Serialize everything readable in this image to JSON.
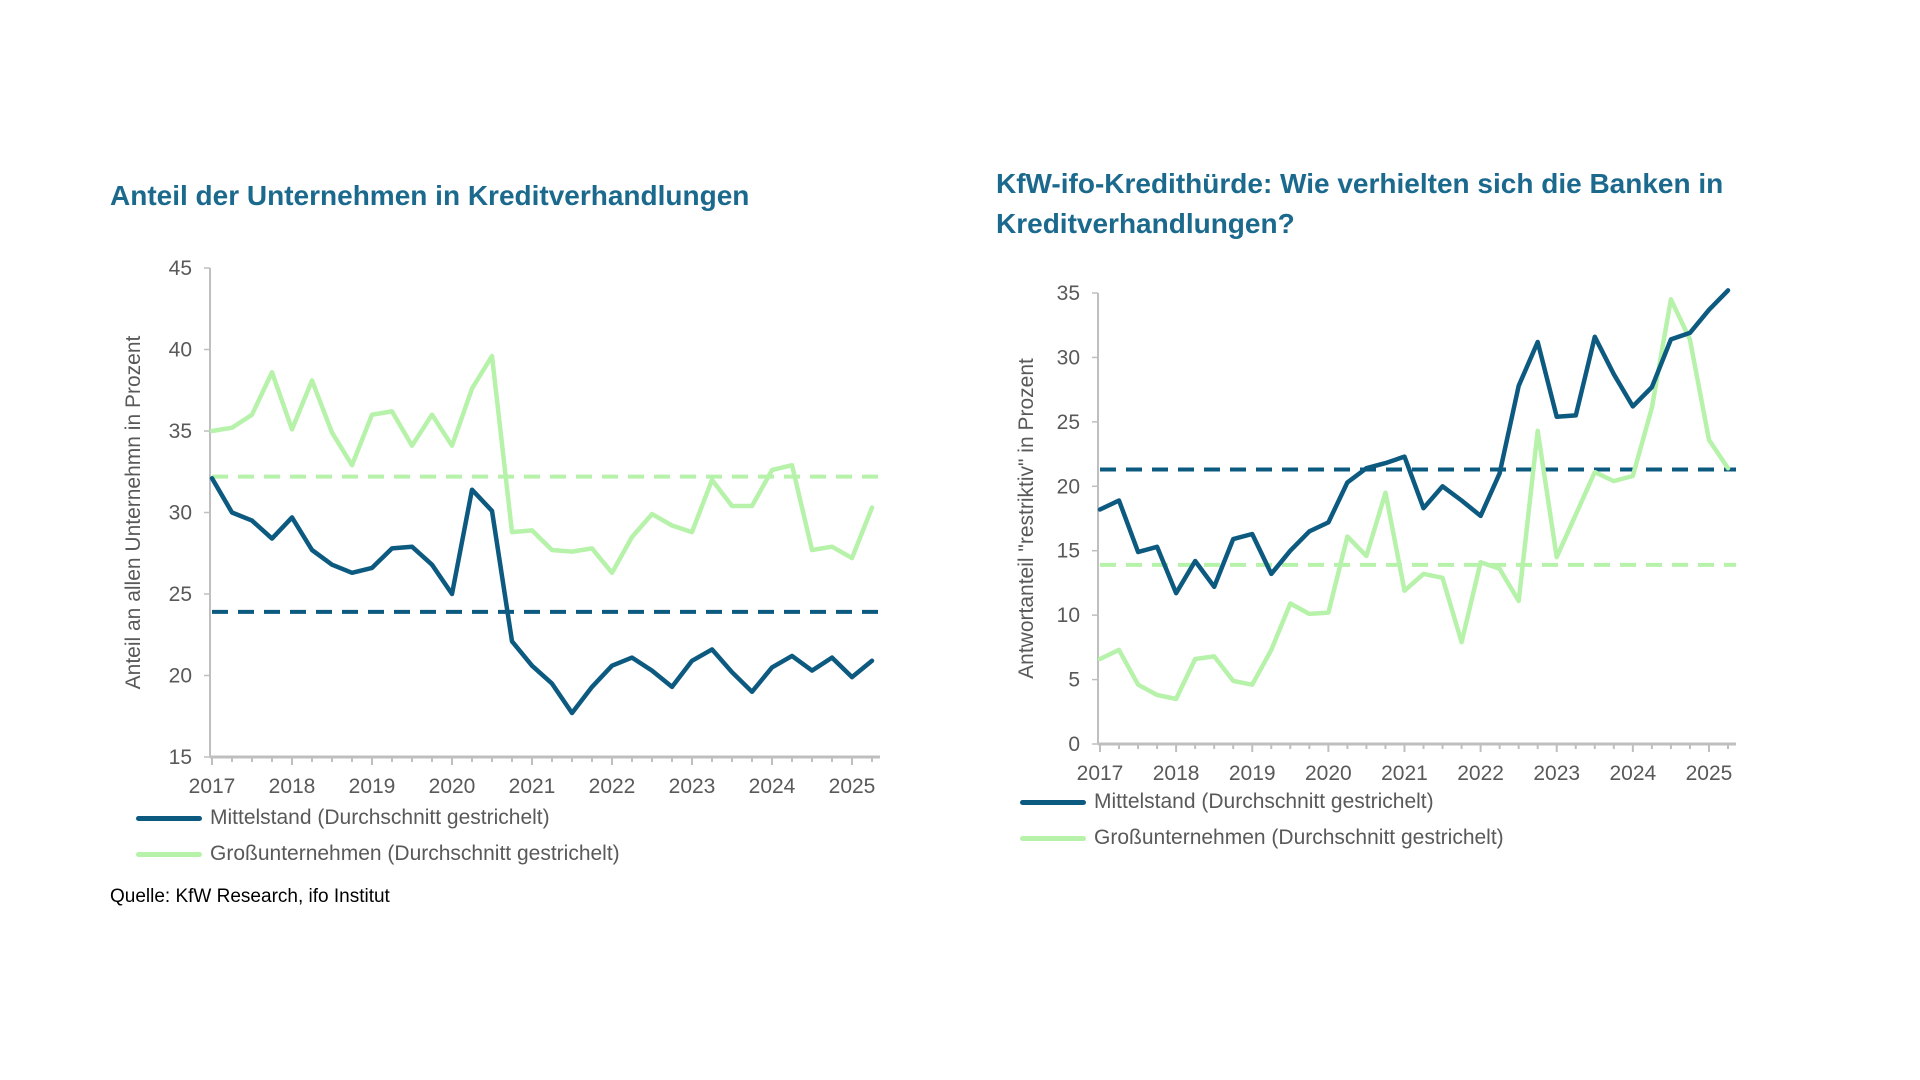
{
  "colors": {
    "mittelstand": "#0d5a80",
    "gross": "#b7f2aa",
    "title": "#1b6a8e",
    "axis": "#bfbfbf",
    "text": "#595959"
  },
  "left_title": "Anteil der Unternehmen in Kreditverhandlungen",
  "right_title": "KfW-ifo-Kredithürde: Wie verhielten sich die Banken in Kreditverhandlungen?",
  "source": "Quelle: KfW Research, ifo Institut",
  "legend": {
    "mittelstand": "Mittelstand (Durchschnitt gestrichelt)",
    "gross": "Großunternehmen (Durchschnitt gestrichelt)"
  },
  "chart_data": [
    {
      "type": "line",
      "title": "Anteil der Unternehmen in Kreditverhandlungen",
      "ylabel": "Anteil an allen Unternehmn in Prozent",
      "xlabel": "",
      "ylim": [
        15,
        45
      ],
      "yticks": [
        15,
        20,
        25,
        30,
        35,
        40,
        45
      ],
      "xticks": [
        "2017",
        "2018",
        "2019",
        "2020",
        "2021",
        "2022",
        "2023",
        "2024",
        "2025"
      ],
      "x_start": 2017,
      "x_step": 0.25,
      "series": [
        {
          "name": "Mittelstand (Durchschnitt gestrichelt)",
          "values": [
            32.1,
            30.0,
            29.5,
            28.4,
            29.7,
            27.7,
            26.8,
            26.3,
            26.6,
            27.8,
            27.9,
            26.8,
            25.0,
            31.4,
            30.1,
            22.1,
            20.6,
            19.5,
            17.7,
            19.3,
            20.6,
            21.1,
            20.3,
            19.3,
            20.9,
            21.6,
            20.2,
            19.0,
            20.5,
            21.2,
            20.3,
            21.1,
            19.9,
            20.9
          ],
          "average": 23.9
        },
        {
          "name": "Großunternehmen (Durchschnitt gestrichelt)",
          "values": [
            35.0,
            35.2,
            36.0,
            38.6,
            35.1,
            38.1,
            34.9,
            32.9,
            36.0,
            36.2,
            34.1,
            36.0,
            34.1,
            37.6,
            39.6,
            28.8,
            28.9,
            27.7,
            27.6,
            27.8,
            26.3,
            28.5,
            29.9,
            29.2,
            28.8,
            32.0,
            30.4,
            30.4,
            32.6,
            32.9,
            27.7,
            27.9,
            27.2,
            30.3
          ],
          "average": 32.2
        }
      ]
    },
    {
      "type": "line",
      "title": "KfW-ifo-Kredithürde: Wie verhielten sich die Banken in Kreditverhandlungen?",
      "ylabel": "Antwortanteil \"restriktiv\" in Prozent",
      "xlabel": "",
      "ylim": [
        0,
        35
      ],
      "yticks": [
        0,
        5,
        10,
        15,
        20,
        25,
        30,
        35
      ],
      "xticks": [
        "2017",
        "2018",
        "2019",
        "2020",
        "2021",
        "2022",
        "2023",
        "2024",
        "2025"
      ],
      "x_start": 2017,
      "x_step": 0.25,
      "series": [
        {
          "name": "Mittelstand (Durchschnitt gestrichelt)",
          "values": [
            18.2,
            18.9,
            14.9,
            15.3,
            11.7,
            14.2,
            12.2,
            15.9,
            16.3,
            13.2,
            15.0,
            16.5,
            17.2,
            20.3,
            21.4,
            21.8,
            22.3,
            18.3,
            20.0,
            18.9,
            17.7,
            21.0,
            27.8,
            31.2,
            25.4,
            25.5,
            31.6,
            28.7,
            26.2,
            27.7,
            31.4,
            31.9,
            33.7,
            35.2
          ],
          "average": 21.3
        },
        {
          "name": "Großunternehmen (Durchschnitt gestrichelt)",
          "values": [
            6.6,
            7.3,
            4.6,
            3.8,
            3.5,
            6.6,
            6.8,
            4.9,
            4.6,
            7.3,
            10.9,
            10.1,
            10.2,
            16.1,
            14.6,
            19.5,
            11.9,
            13.2,
            12.9,
            7.9,
            14.1,
            13.6,
            11.1,
            24.3,
            14.5,
            17.8,
            21.1,
            20.4,
            20.8,
            26.1,
            34.5,
            31.4,
            23.6,
            21.4
          ],
          "average": 13.9
        }
      ]
    }
  ]
}
